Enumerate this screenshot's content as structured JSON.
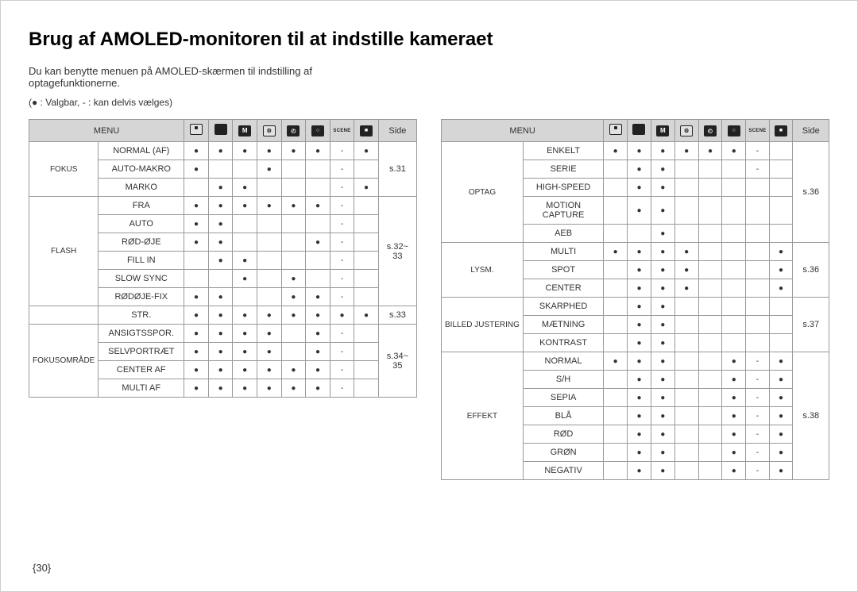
{
  "title": "Brug af AMOLED-monitoren til at indstille kameraet",
  "intro": "Du kan benytte menuen på AMOLED-skærmen til indstilling af optagefunktionerne.",
  "legend": "(● : Valgbar, - : kan delvis vælges)",
  "page_number": "{30}",
  "header": {
    "menu": "MENU",
    "side": "Side",
    "icons": [
      "camera",
      "camera-b",
      "M",
      "gear",
      "clock",
      "magnify",
      "SCENE",
      "video"
    ]
  },
  "left_table": {
    "groups": [
      {
        "category": "FOKUS",
        "side": "s.31",
        "rows": [
          {
            "item": "NORMAL (AF)",
            "marks": [
              "●",
              "●",
              "●",
              "●",
              "●",
              "●",
              "-",
              "●"
            ]
          },
          {
            "item": "AUTO-MAKRO",
            "marks": [
              "●",
              "",
              "",
              "●",
              "",
              "",
              "-",
              ""
            ]
          },
          {
            "item": "MARKO",
            "marks": [
              "",
              "●",
              "●",
              "",
              "",
              "",
              "-",
              "●"
            ]
          }
        ]
      },
      {
        "category": "FLASH",
        "side": "s.32~ 33",
        "rows": [
          {
            "item": "FRA",
            "marks": [
              "●",
              "●",
              "●",
              "●",
              "●",
              "●",
              "-",
              ""
            ]
          },
          {
            "item": "AUTO",
            "marks": [
              "●",
              "●",
              "",
              "",
              "",
              "",
              "-",
              ""
            ]
          },
          {
            "item": "RØD-ØJE",
            "marks": [
              "●",
              "●",
              "",
              "",
              "",
              "●",
              "-",
              ""
            ]
          },
          {
            "item": "FILL IN",
            "marks": [
              "",
              "●",
              "●",
              "",
              "",
              "",
              "-",
              ""
            ]
          },
          {
            "item": "SLOW SYNC",
            "marks": [
              "",
              "",
              "●",
              "",
              "●",
              "",
              "-",
              ""
            ]
          },
          {
            "item": "RØDØJE-FIX",
            "marks": [
              "●",
              "●",
              "",
              "",
              "●",
              "●",
              "-",
              ""
            ]
          }
        ]
      },
      {
        "category": "",
        "side": "s.33",
        "rows": [
          {
            "item": "STR.",
            "marks": [
              "●",
              "●",
              "●",
              "●",
              "●",
              "●",
              "●",
              "●"
            ]
          }
        ]
      },
      {
        "category": "FOKUSOMRÅDE",
        "side": "s.34~ 35",
        "rows": [
          {
            "item": "ANSIGTSSPOR.",
            "marks": [
              "●",
              "●",
              "●",
              "●",
              "",
              "●",
              "-",
              ""
            ]
          },
          {
            "item": "SELVPORTRÆT",
            "marks": [
              "●",
              "●",
              "●",
              "●",
              "",
              "●",
              "-",
              ""
            ]
          },
          {
            "item": "CENTER AF",
            "marks": [
              "●",
              "●",
              "●",
              "●",
              "●",
              "●",
              "-",
              ""
            ]
          },
          {
            "item": "MULTI AF",
            "marks": [
              "●",
              "●",
              "●",
              "●",
              "●",
              "●",
              "-",
              ""
            ]
          }
        ]
      }
    ]
  },
  "right_table": {
    "groups": [
      {
        "category": "OPTAG",
        "side": "s.36",
        "rows": [
          {
            "item": "ENKELT",
            "marks": [
              "●",
              "●",
              "●",
              "●",
              "●",
              "●",
              "-",
              ""
            ]
          },
          {
            "item": "SERIE",
            "marks": [
              "",
              "●",
              "●",
              "",
              "",
              "",
              "-",
              ""
            ]
          },
          {
            "item": "HIGH-SPEED",
            "marks": [
              "",
              "●",
              "●",
              "",
              "",
              "",
              "",
              ""
            ]
          },
          {
            "item": "MOTION CAPTURE",
            "marks": [
              "",
              "●",
              "●",
              "",
              "",
              "",
              "",
              ""
            ]
          },
          {
            "item": "AEB",
            "marks": [
              "",
              "",
              "●",
              "",
              "",
              "",
              "",
              ""
            ]
          }
        ]
      },
      {
        "category": "LYSM.",
        "side": "s.36",
        "rows": [
          {
            "item": "MULTI",
            "marks": [
              "●",
              "●",
              "●",
              "●",
              "",
              "",
              "",
              "●"
            ]
          },
          {
            "item": "SPOT",
            "marks": [
              "",
              "●",
              "●",
              "●",
              "",
              "",
              "",
              "●"
            ]
          },
          {
            "item": "CENTER",
            "marks": [
              "",
              "●",
              "●",
              "●",
              "",
              "",
              "",
              "●"
            ]
          }
        ]
      },
      {
        "category": "BILLED JUSTERING",
        "side": "s.37",
        "rows": [
          {
            "item": "SKARPHED",
            "marks": [
              "",
              "●",
              "●",
              "",
              "",
              "",
              "",
              ""
            ]
          },
          {
            "item": "MÆTNING",
            "marks": [
              "",
              "●",
              "●",
              "",
              "",
              "",
              "",
              ""
            ]
          },
          {
            "item": "KONTRAST",
            "marks": [
              "",
              "●",
              "●",
              "",
              "",
              "",
              "",
              ""
            ]
          }
        ]
      },
      {
        "category": "EFFEKT",
        "side": "s.38",
        "rows": [
          {
            "item": "NORMAL",
            "marks": [
              "●",
              "●",
              "●",
              "",
              "",
              "●",
              "-",
              "●"
            ]
          },
          {
            "item": "S/H",
            "marks": [
              "",
              "●",
              "●",
              "",
              "",
              "●",
              "-",
              "●"
            ]
          },
          {
            "item": "SEPIA",
            "marks": [
              "",
              "●",
              "●",
              "",
              "",
              "●",
              "-",
              "●"
            ]
          },
          {
            "item": "BLÅ",
            "marks": [
              "",
              "●",
              "●",
              "",
              "",
              "●",
              "-",
              "●"
            ]
          },
          {
            "item": "RØD",
            "marks": [
              "",
              "●",
              "●",
              "",
              "",
              "●",
              "-",
              "●"
            ]
          },
          {
            "item": "GRØN",
            "marks": [
              "",
              "●",
              "●",
              "",
              "",
              "●",
              "-",
              "●"
            ]
          },
          {
            "item": "NEGATIV",
            "marks": [
              "",
              "●",
              "●",
              "",
              "",
              "●",
              "-",
              "●"
            ]
          }
        ]
      }
    ]
  }
}
